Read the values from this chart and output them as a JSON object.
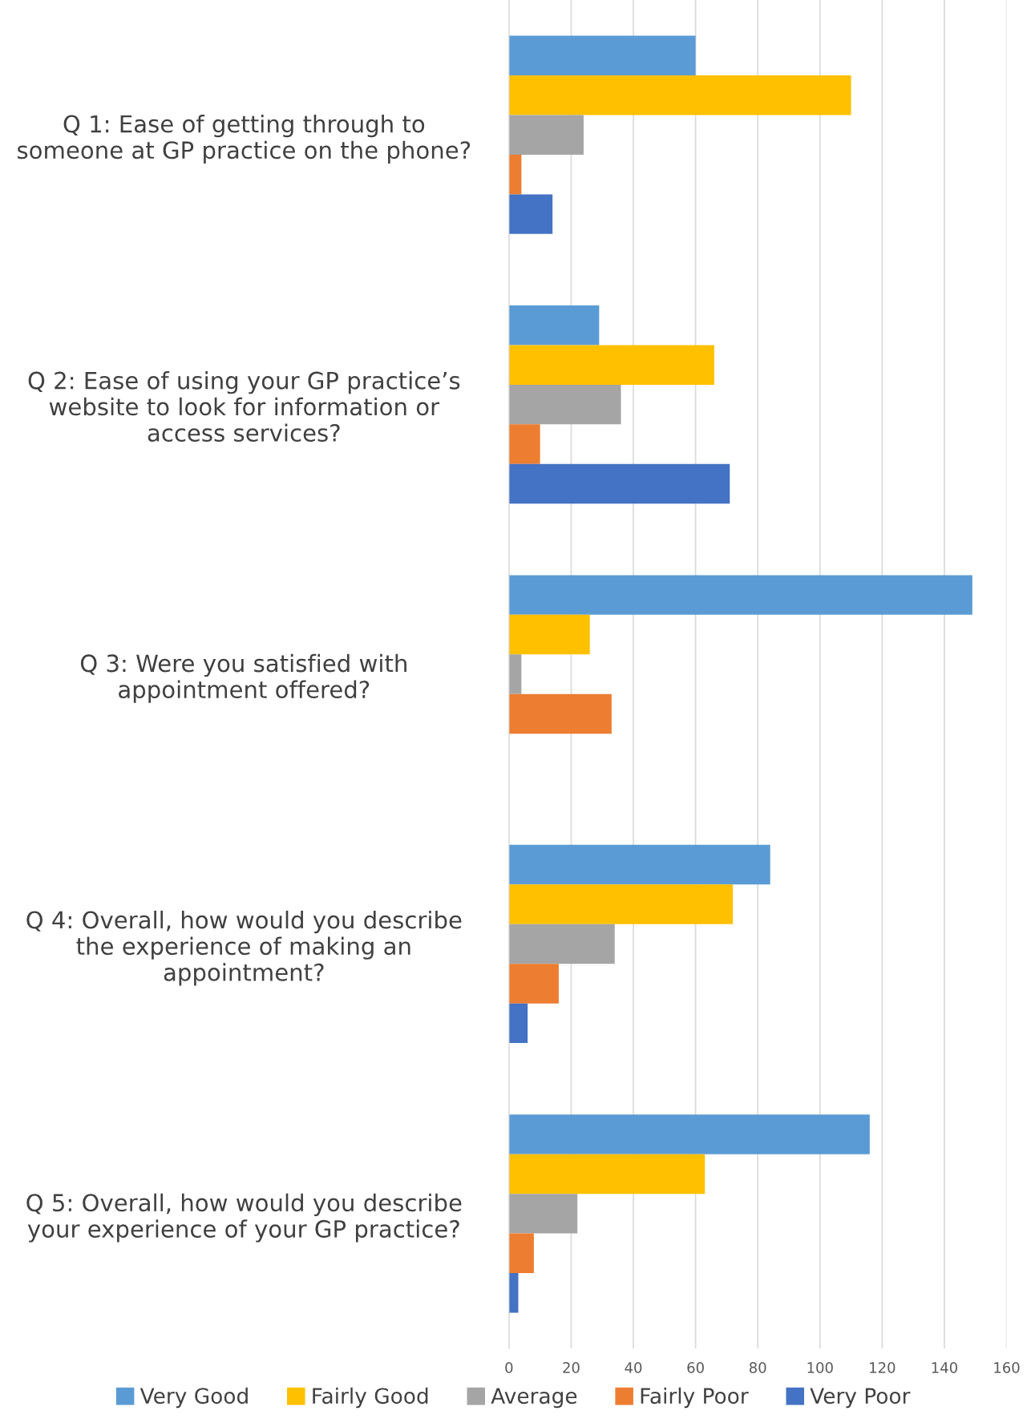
{
  "chart_data": {
    "type": "bar",
    "orientation": "horizontal",
    "categories": [
      "Q 1: Ease of getting through to\nsomeone at GP practice on the phone?",
      "Q 2: Ease of using your GP practice’s\nwebsite to look for information or\naccess services?",
      "Q 3: Were you satisfied with\nappointment offered?",
      "Q 4: Overall, how would you describe\nthe experience of making an\nappointment?",
      "Q 5: Overall, how would you describe\nyour experience of your GP practice?"
    ],
    "series": [
      {
        "name": "Very Good",
        "color": "#5b9bd5",
        "values": [
          60,
          29,
          149,
          84,
          116
        ]
      },
      {
        "name": "Fairly Good",
        "color": "#ffc000",
        "values": [
          110,
          66,
          26,
          72,
          63
        ]
      },
      {
        "name": "Average",
        "color": "#a5a5a5",
        "values": [
          24,
          36,
          4,
          34,
          22
        ]
      },
      {
        "name": "Fairly Poor",
        "color": "#ed7d31",
        "values": [
          4,
          10,
          33,
          16,
          8
        ]
      },
      {
        "name": "Very Poor",
        "color": "#4472c4",
        "values": [
          14,
          71,
          null,
          6,
          3
        ]
      }
    ],
    "xlim": [
      0,
      160
    ],
    "xticks": [
      0,
      20,
      40,
      60,
      80,
      100,
      120,
      140,
      160
    ],
    "grid": "x",
    "legend": "bottom"
  }
}
